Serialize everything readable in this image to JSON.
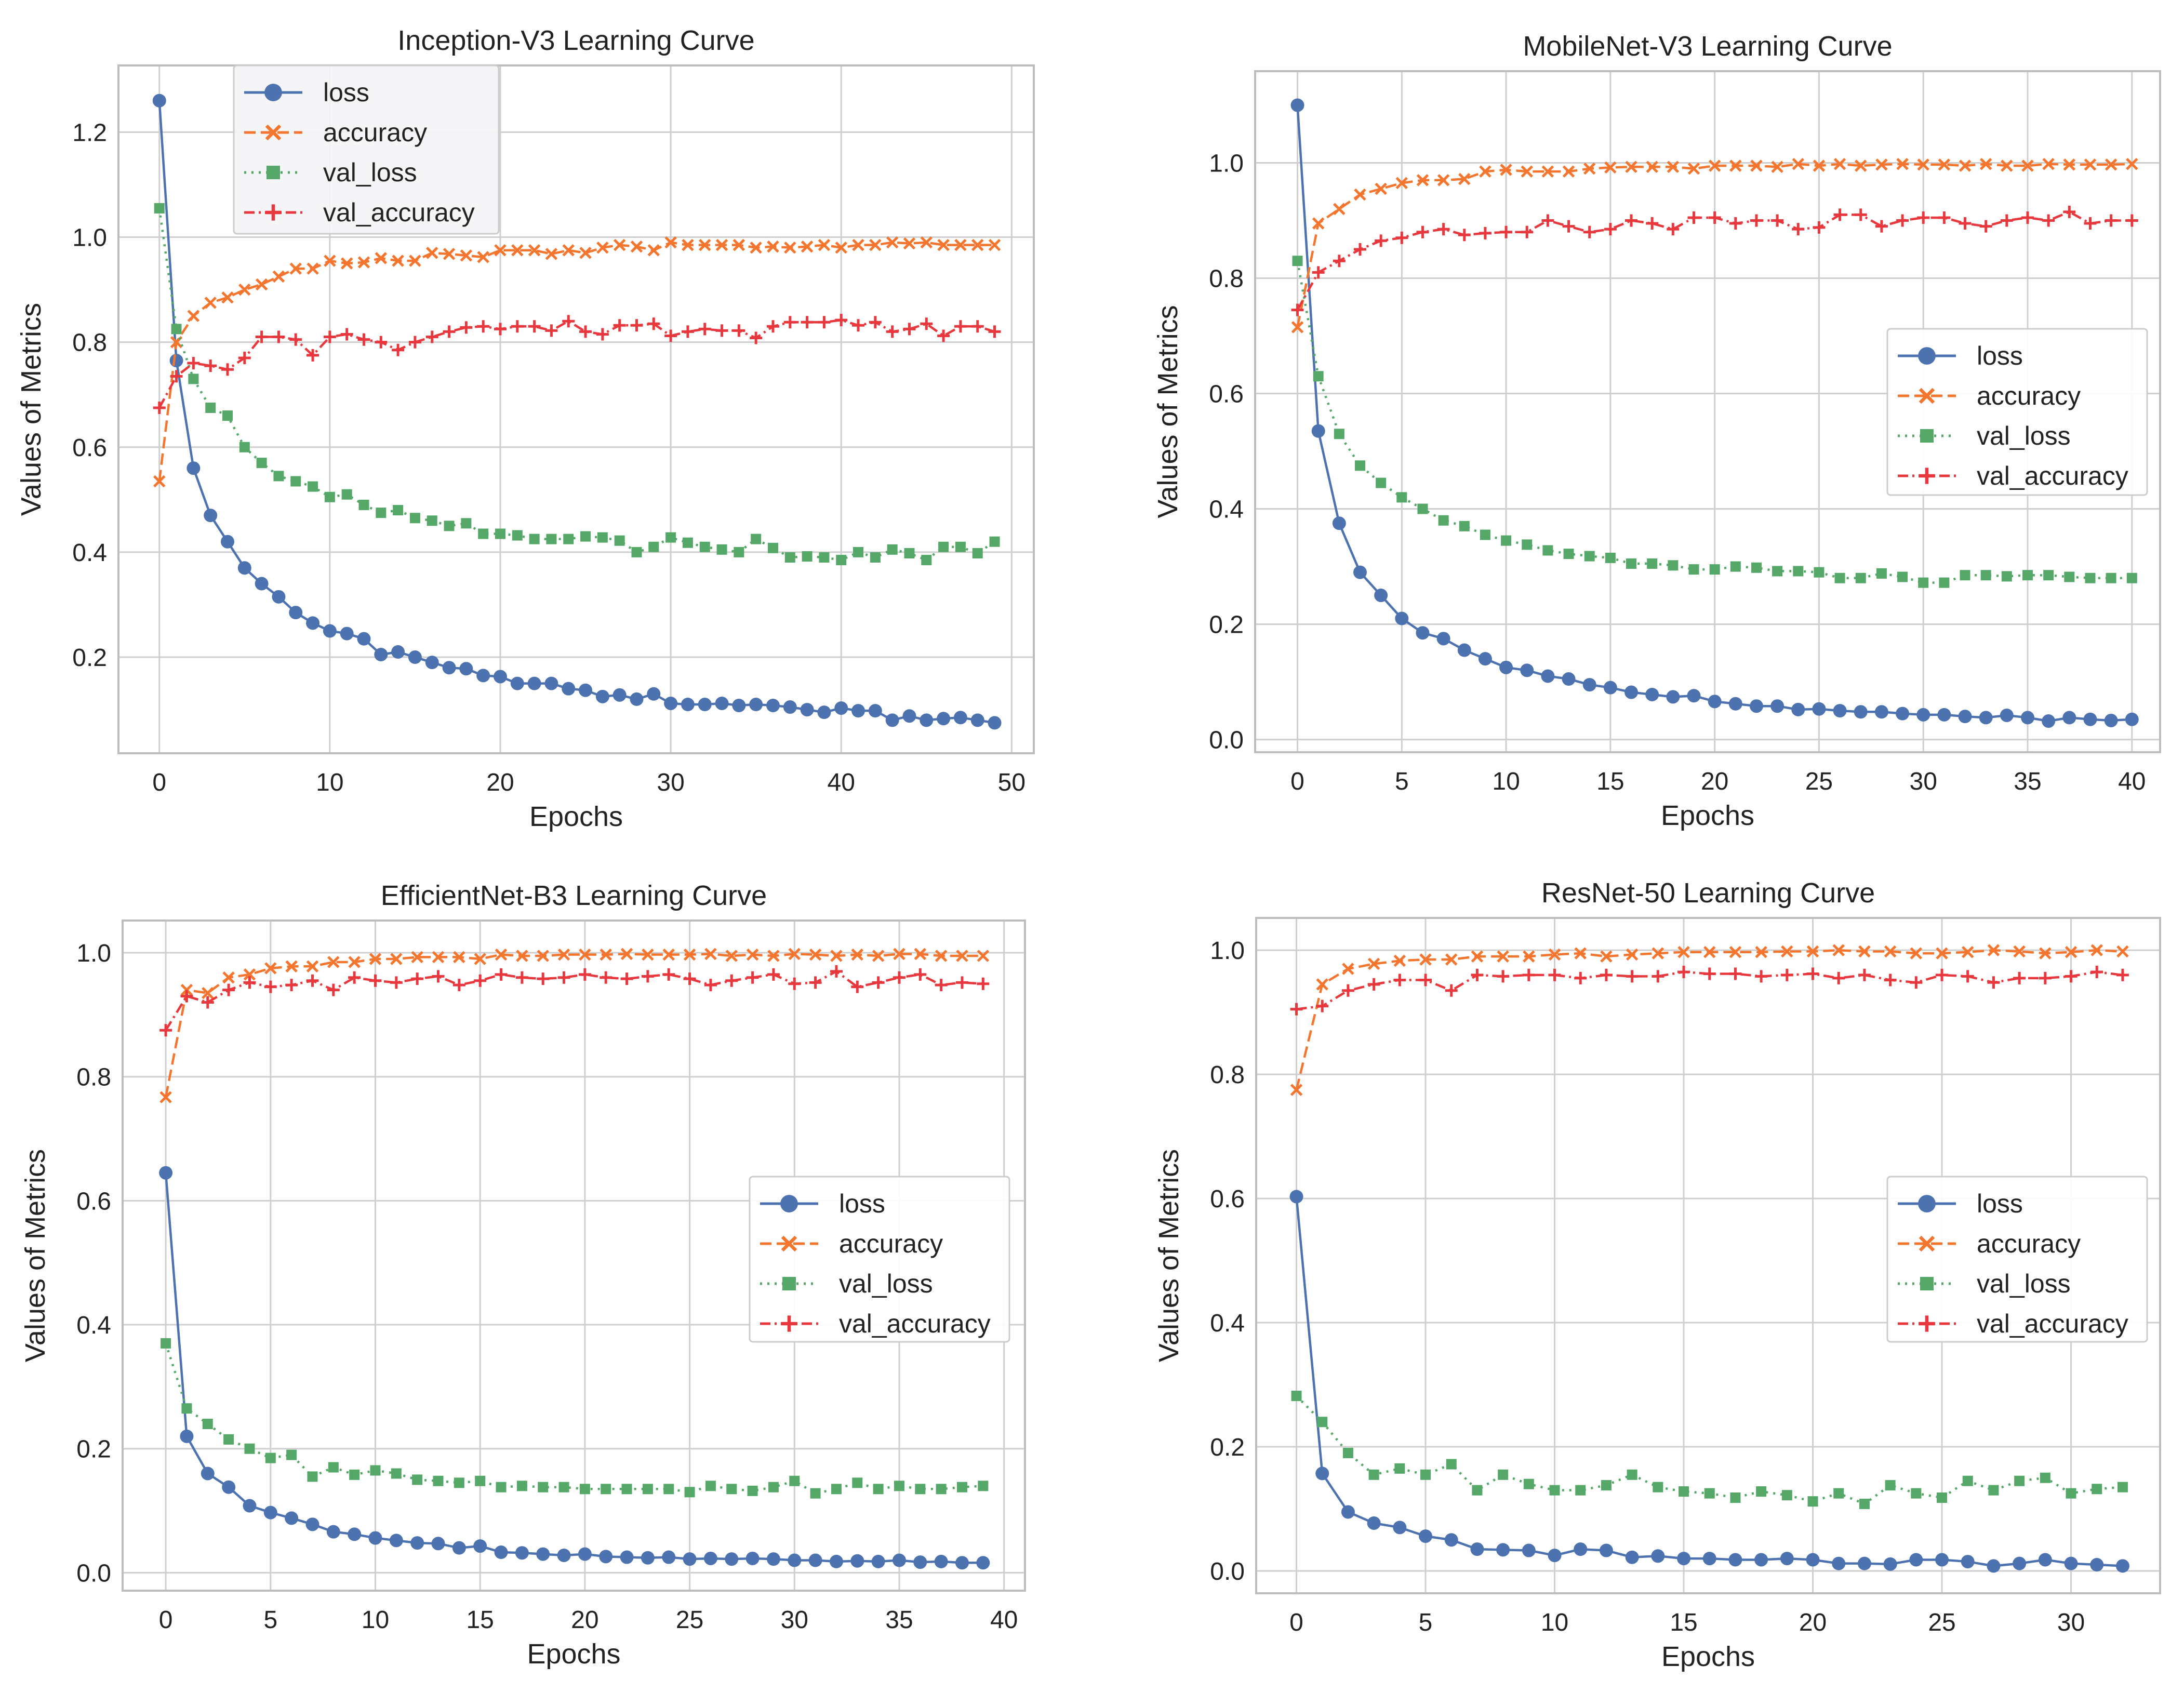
{
  "colors": {
    "loss": "#4c72b0",
    "accuracy": "#f4762e",
    "val_loss": "#55a868",
    "val_accuracy": "#e8383d",
    "grid": "#cfcfcf",
    "frame": "#bdbdbd"
  },
  "chart_data": [
    {
      "type": "line",
      "title": "Inception-V3 Learning Curve",
      "xlabel": "Epochs",
      "ylabel": "Values of Metrics",
      "xlim": [
        -2.4,
        51.3
      ],
      "ylim": [
        0.017,
        1.327
      ],
      "xticks": [
        0,
        10,
        20,
        30,
        40,
        50
      ],
      "yticks": [
        0.2,
        0.4,
        0.6,
        0.8,
        1.0,
        1.2
      ],
      "grid": true,
      "legend": "top-left",
      "series": [
        {
          "name": "loss",
          "values": [
            1.26,
            0.765,
            0.56,
            0.47,
            0.42,
            0.37,
            0.34,
            0.315,
            0.285,
            0.265,
            0.25,
            0.245,
            0.235,
            0.205,
            0.21,
            0.2,
            0.19,
            0.18,
            0.178,
            0.165,
            0.163,
            0.15,
            0.15,
            0.15,
            0.14,
            0.137,
            0.125,
            0.128,
            0.12,
            0.13,
            0.112,
            0.11,
            0.11,
            0.112,
            0.108,
            0.11,
            0.108,
            0.105,
            0.1,
            0.095,
            0.103,
            0.098,
            0.098,
            0.08,
            0.088,
            0.08,
            0.083,
            0.085,
            0.08,
            0.075
          ]
        },
        {
          "name": "accuracy",
          "values": [
            0.535,
            0.8,
            0.85,
            0.875,
            0.885,
            0.9,
            0.91,
            0.925,
            0.94,
            0.94,
            0.955,
            0.95,
            0.952,
            0.96,
            0.955,
            0.955,
            0.97,
            0.968,
            0.965,
            0.962,
            0.975,
            0.975,
            0.975,
            0.968,
            0.975,
            0.97,
            0.98,
            0.985,
            0.982,
            0.975,
            0.99,
            0.985,
            0.985,
            0.985,
            0.985,
            0.98,
            0.982,
            0.98,
            0.982,
            0.985,
            0.98,
            0.985,
            0.985,
            0.99,
            0.988,
            0.99,
            0.985,
            0.985,
            0.985,
            0.985
          ]
        },
        {
          "name": "val_loss",
          "values": [
            1.055,
            0.825,
            0.73,
            0.675,
            0.66,
            0.6,
            0.57,
            0.545,
            0.535,
            0.525,
            0.505,
            0.51,
            0.49,
            0.475,
            0.48,
            0.465,
            0.46,
            0.45,
            0.455,
            0.435,
            0.435,
            0.432,
            0.425,
            0.425,
            0.425,
            0.43,
            0.428,
            0.422,
            0.4,
            0.41,
            0.428,
            0.418,
            0.41,
            0.405,
            0.4,
            0.425,
            0.408,
            0.39,
            0.392,
            0.39,
            0.385,
            0.4,
            0.39,
            0.405,
            0.398,
            0.385,
            0.41,
            0.41,
            0.398,
            0.42
          ]
        },
        {
          "name": "val_accuracy",
          "values": [
            0.675,
            0.735,
            0.76,
            0.755,
            0.748,
            0.77,
            0.81,
            0.81,
            0.805,
            0.775,
            0.81,
            0.815,
            0.805,
            0.8,
            0.785,
            0.8,
            0.81,
            0.82,
            0.828,
            0.83,
            0.825,
            0.83,
            0.83,
            0.822,
            0.84,
            0.82,
            0.815,
            0.832,
            0.832,
            0.835,
            0.812,
            0.82,
            0.825,
            0.822,
            0.822,
            0.808,
            0.83,
            0.838,
            0.838,
            0.838,
            0.842,
            0.832,
            0.838,
            0.82,
            0.825,
            0.835,
            0.812,
            0.83,
            0.83,
            0.82
          ]
        }
      ]
    },
    {
      "type": "line",
      "title": "MobileNet-V3 Learning Curve",
      "xlabel": "Epochs",
      "ylabel": "Values of Metrics",
      "xlim": [
        -2.03,
        41.35
      ],
      "ylim": [
        -0.022,
        1.159
      ],
      "xticks": [
        0,
        5,
        10,
        15,
        20,
        25,
        30,
        35,
        40
      ],
      "yticks": [
        0.0,
        0.2,
        0.4,
        0.6,
        0.8,
        1.0
      ],
      "grid": true,
      "legend": "center-right",
      "series": [
        {
          "name": "loss",
          "values": [
            1.1,
            0.535,
            0.375,
            0.29,
            0.25,
            0.21,
            0.185,
            0.175,
            0.155,
            0.14,
            0.125,
            0.12,
            0.11,
            0.105,
            0.095,
            0.09,
            0.082,
            0.078,
            0.074,
            0.076,
            0.066,
            0.062,
            0.058,
            0.058,
            0.052,
            0.053,
            0.05,
            0.048,
            0.048,
            0.045,
            0.043,
            0.043,
            0.04,
            0.038,
            0.042,
            0.038,
            0.032,
            0.038,
            0.035,
            0.033,
            0.035
          ]
        },
        {
          "name": "accuracy",
          "values": [
            0.715,
            0.895,
            0.92,
            0.945,
            0.955,
            0.965,
            0.97,
            0.97,
            0.972,
            0.985,
            0.988,
            0.985,
            0.985,
            0.985,
            0.99,
            0.992,
            0.993,
            0.993,
            0.993,
            0.99,
            0.995,
            0.995,
            0.995,
            0.993,
            0.998,
            0.995,
            0.998,
            0.995,
            0.997,
            0.998,
            0.997,
            0.997,
            0.995,
            0.998,
            0.995,
            0.995,
            0.998,
            0.997,
            0.997,
            0.997,
            0.998
          ]
        },
        {
          "name": "val_loss",
          "values": [
            0.83,
            0.63,
            0.53,
            0.475,
            0.445,
            0.42,
            0.4,
            0.38,
            0.37,
            0.355,
            0.345,
            0.338,
            0.328,
            0.322,
            0.318,
            0.315,
            0.305,
            0.305,
            0.302,
            0.295,
            0.295,
            0.3,
            0.298,
            0.292,
            0.292,
            0.29,
            0.28,
            0.28,
            0.288,
            0.282,
            0.272,
            0.272,
            0.285,
            0.285,
            0.283,
            0.285,
            0.285,
            0.282,
            0.28,
            0.28,
            0.28
          ]
        },
        {
          "name": "val_accuracy",
          "values": [
            0.745,
            0.81,
            0.83,
            0.85,
            0.865,
            0.87,
            0.88,
            0.885,
            0.875,
            0.878,
            0.88,
            0.88,
            0.9,
            0.89,
            0.88,
            0.885,
            0.9,
            0.895,
            0.885,
            0.905,
            0.905,
            0.895,
            0.9,
            0.9,
            0.885,
            0.888,
            0.91,
            0.91,
            0.89,
            0.9,
            0.905,
            0.905,
            0.895,
            0.89,
            0.9,
            0.905,
            0.9,
            0.915,
            0.895,
            0.9,
            0.9
          ]
        }
      ]
    },
    {
      "type": "line",
      "title": "EfficientNet-B3 Learning Curve",
      "xlabel": "Epochs",
      "ylabel": "Values of Metrics",
      "xlim": [
        -2.06,
        41.0
      ],
      "ylim": [
        -0.029,
        1.052
      ],
      "xticks": [
        0,
        5,
        10,
        15,
        20,
        25,
        30,
        35,
        40
      ],
      "yticks": [
        0.0,
        0.2,
        0.4,
        0.6,
        0.8,
        1.0
      ],
      "grid": true,
      "legend": "center-right",
      "series": [
        {
          "name": "loss",
          "values": [
            0.645,
            0.22,
            0.16,
            0.138,
            0.108,
            0.097,
            0.088,
            0.078,
            0.066,
            0.062,
            0.056,
            0.052,
            0.048,
            0.047,
            0.04,
            0.043,
            0.033,
            0.032,
            0.03,
            0.028,
            0.03,
            0.026,
            0.025,
            0.024,
            0.025,
            0.022,
            0.023,
            0.022,
            0.023,
            0.022,
            0.02,
            0.02,
            0.018,
            0.019,
            0.018,
            0.02,
            0.017,
            0.018,
            0.016,
            0.016
          ]
        },
        {
          "name": "accuracy",
          "values": [
            0.767,
            0.94,
            0.935,
            0.96,
            0.965,
            0.975,
            0.978,
            0.978,
            0.985,
            0.985,
            0.99,
            0.99,
            0.993,
            0.993,
            0.993,
            0.99,
            0.997,
            0.995,
            0.995,
            0.997,
            0.997,
            0.997,
            0.998,
            0.997,
            0.997,
            0.997,
            0.998,
            0.995,
            0.997,
            0.995,
            0.998,
            0.997,
            0.995,
            0.997,
            0.995,
            0.998,
            0.998,
            0.995,
            0.995,
            0.995
          ]
        },
        {
          "name": "val_loss",
          "values": [
            0.37,
            0.265,
            0.24,
            0.215,
            0.2,
            0.185,
            0.19,
            0.155,
            0.17,
            0.158,
            0.165,
            0.16,
            0.15,
            0.148,
            0.145,
            0.148,
            0.138,
            0.14,
            0.138,
            0.138,
            0.135,
            0.135,
            0.135,
            0.135,
            0.135,
            0.13,
            0.14,
            0.135,
            0.132,
            0.138,
            0.148,
            0.128,
            0.135,
            0.145,
            0.135,
            0.14,
            0.135,
            0.135,
            0.138,
            0.14
          ]
        },
        {
          "name": "val_accuracy",
          "values": [
            0.875,
            0.93,
            0.92,
            0.94,
            0.952,
            0.945,
            0.948,
            0.955,
            0.94,
            0.96,
            0.955,
            0.952,
            0.958,
            0.962,
            0.948,
            0.955,
            0.965,
            0.96,
            0.958,
            0.96,
            0.965,
            0.96,
            0.958,
            0.962,
            0.965,
            0.958,
            0.948,
            0.955,
            0.96,
            0.965,
            0.95,
            0.952,
            0.97,
            0.945,
            0.952,
            0.96,
            0.965,
            0.948,
            0.952,
            0.95
          ]
        }
      ]
    },
    {
      "type": "line",
      "title": "ResNet-50 Learning Curve",
      "xlabel": "Epochs",
      "ylabel": "Values of Metrics",
      "xlim": [
        -1.56,
        33.45
      ],
      "ylim": [
        -0.036,
        1.052
      ],
      "xticks": [
        0,
        5,
        10,
        15,
        20,
        25,
        30
      ],
      "yticks": [
        0.0,
        0.2,
        0.4,
        0.6,
        0.8,
        1.0
      ],
      "grid": true,
      "legend": "center-right",
      "series": [
        {
          "name": "loss",
          "values": [
            0.603,
            0.157,
            0.095,
            0.077,
            0.07,
            0.056,
            0.05,
            0.035,
            0.034,
            0.033,
            0.025,
            0.035,
            0.033,
            0.022,
            0.024,
            0.02,
            0.02,
            0.018,
            0.018,
            0.02,
            0.018,
            0.012,
            0.012,
            0.011,
            0.018,
            0.018,
            0.015,
            0.008,
            0.012,
            0.018,
            0.012,
            0.01,
            0.008
          ]
        },
        {
          "name": "accuracy",
          "values": [
            0.775,
            0.945,
            0.97,
            0.978,
            0.983,
            0.985,
            0.985,
            0.99,
            0.99,
            0.99,
            0.993,
            0.995,
            0.99,
            0.993,
            0.995,
            0.997,
            0.997,
            0.997,
            0.997,
            0.998,
            0.998,
            1.0,
            0.998,
            0.998,
            0.995,
            0.995,
            0.997,
            1.0,
            0.998,
            0.995,
            0.997,
            1.0,
            0.998
          ]
        },
        {
          "name": "val_loss",
          "values": [
            0.282,
            0.24,
            0.19,
            0.155,
            0.165,
            0.155,
            0.172,
            0.13,
            0.155,
            0.14,
            0.13,
            0.13,
            0.138,
            0.155,
            0.135,
            0.128,
            0.125,
            0.118,
            0.128,
            0.122,
            0.112,
            0.125,
            0.108,
            0.138,
            0.125,
            0.118,
            0.145,
            0.13,
            0.145,
            0.15,
            0.125,
            0.132,
            0.135
          ]
        },
        {
          "name": "val_accuracy",
          "values": [
            0.905,
            0.91,
            0.935,
            0.945,
            0.952,
            0.952,
            0.935,
            0.96,
            0.958,
            0.96,
            0.96,
            0.955,
            0.96,
            0.958,
            0.958,
            0.965,
            0.962,
            0.962,
            0.958,
            0.96,
            0.962,
            0.955,
            0.96,
            0.952,
            0.948,
            0.96,
            0.958,
            0.948,
            0.955,
            0.955,
            0.958,
            0.965,
            0.96
          ]
        }
      ]
    }
  ]
}
